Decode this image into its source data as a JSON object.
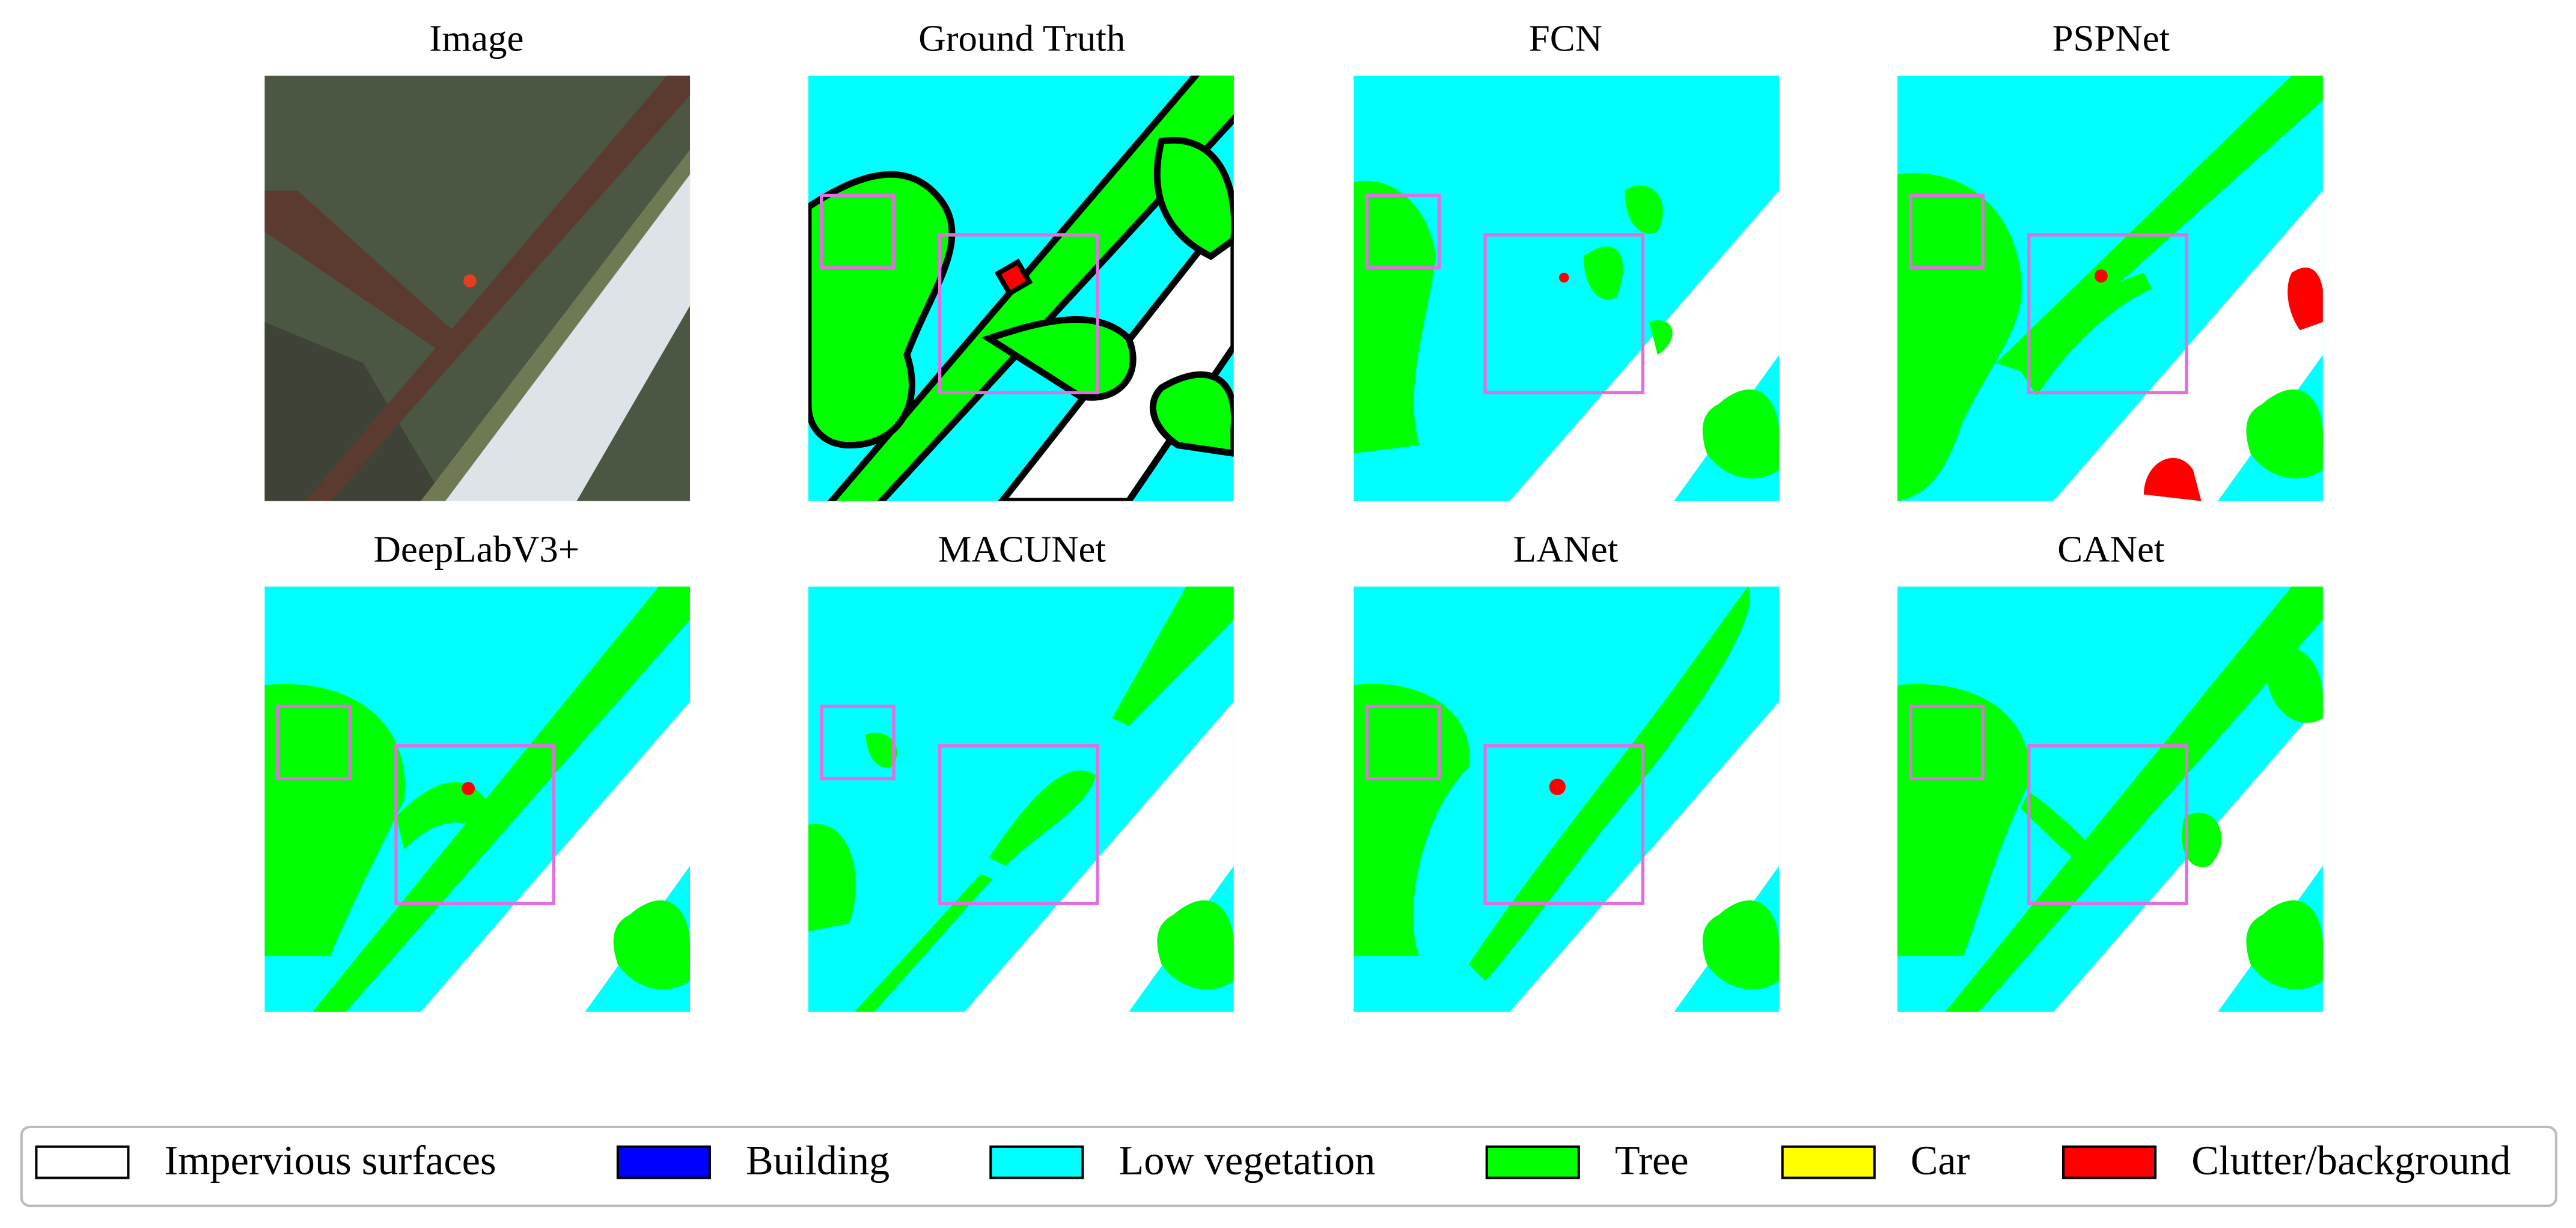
{
  "panels": [
    {
      "title": "Image"
    },
    {
      "title": "Ground Truth"
    },
    {
      "title": "FCN"
    },
    {
      "title": "PSPNet"
    },
    {
      "title": "DeepLabV3+"
    },
    {
      "title": "MACUNet"
    },
    {
      "title": "LANet"
    },
    {
      "title": "CANet"
    }
  ],
  "legend": {
    "items": [
      {
        "label": "Impervious surfaces",
        "color": "#ffffff"
      },
      {
        "label": "Building",
        "color": "#0000ff"
      },
      {
        "label": "Low vegetation",
        "color": "#00ffff"
      },
      {
        "label": "Tree",
        "color": "#00ff00"
      },
      {
        "label": "Car",
        "color": "#ffff00"
      },
      {
        "label": "Clutter/background",
        "color": "#ff0000"
      }
    ]
  }
}
